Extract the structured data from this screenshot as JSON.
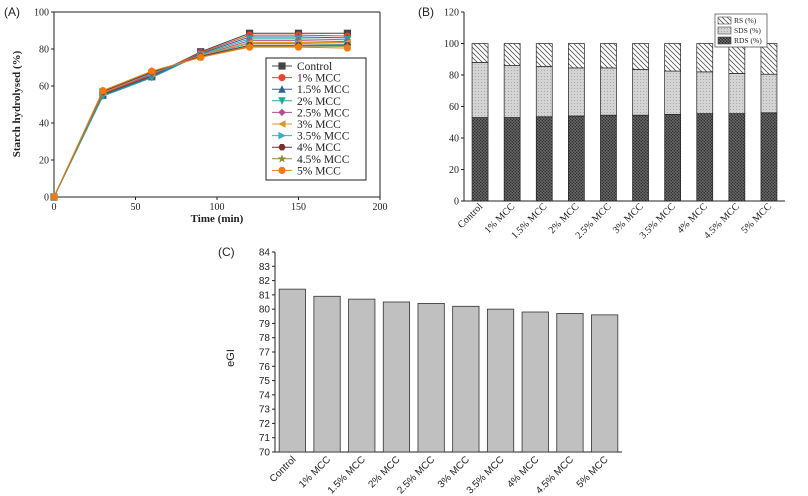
{
  "chart_data": [
    {
      "panel": "(A)",
      "type": "line",
      "xlabel": "Time (min)",
      "ylabel": "Starch hydrolysed (%)",
      "xlim": [
        0,
        200
      ],
      "ylim": [
        0,
        100
      ],
      "xticks": [
        "0",
        "50",
        "100",
        "150",
        "200"
      ],
      "yticks": [
        "0",
        "20",
        "40",
        "60",
        "80",
        "100"
      ],
      "x": [
        0,
        30,
        60,
        90,
        120,
        150,
        180
      ],
      "series": [
        {
          "name": "Control",
          "color": "#444444",
          "marker": "square",
          "values": [
            0,
            55.5,
            65.5,
            78.5,
            88.5,
            88.5,
            88.5
          ]
        },
        {
          "name": "1% MCC",
          "color": "#e8452a",
          "marker": "circle",
          "values": [
            0,
            56.0,
            66.0,
            78.0,
            87.5,
            87.5,
            87.0
          ]
        },
        {
          "name": "1.5% MCC",
          "color": "#2e5f9e",
          "marker": "triangle",
          "values": [
            0,
            55.0,
            65.0,
            77.5,
            86.5,
            86.5,
            86.0
          ]
        },
        {
          "name": "2% MCC",
          "color": "#26a69a",
          "marker": "tri-down",
          "values": [
            0,
            54.5,
            64.5,
            77.0,
            85.5,
            85.5,
            85.0
          ]
        },
        {
          "name": "2.5% MCC",
          "color": "#b0508a",
          "marker": "diamond",
          "values": [
            0,
            56.5,
            66.5,
            76.5,
            84.5,
            84.5,
            84.0
          ]
        },
        {
          "name": "3% MCC",
          "color": "#d99a2b",
          "marker": "tri-left",
          "values": [
            0,
            56.5,
            67.0,
            76.5,
            83.5,
            83.5,
            83.5
          ]
        },
        {
          "name": "3.5% MCC",
          "color": "#2bb5c5",
          "marker": "tri-right",
          "values": [
            0,
            57.0,
            67.0,
            76.0,
            83.0,
            83.0,
            82.5
          ]
        },
        {
          "name": "4% MCC",
          "color": "#7a2f2f",
          "marker": "hexagon",
          "values": [
            0,
            57.0,
            67.5,
            76.0,
            82.0,
            82.0,
            82.0
          ]
        },
        {
          "name": "4.5% MCC",
          "color": "#8a8a3a",
          "marker": "star",
          "values": [
            0,
            57.5,
            68.0,
            75.5,
            81.5,
            81.5,
            81.5
          ]
        },
        {
          "name": "5% MCC",
          "color": "#f07a10",
          "marker": "circle",
          "values": [
            0,
            57.5,
            68.0,
            75.5,
            81.0,
            81.0,
            80.5
          ]
        }
      ]
    },
    {
      "panel": "(B)",
      "type": "bar",
      "stacked": true,
      "ylim": [
        0,
        120
      ],
      "yticks": [
        "0",
        "20",
        "40",
        "60",
        "80",
        "100",
        "120"
      ],
      "categories": [
        "Control",
        "1% MCC",
        "1.5% MCC",
        "2% MCC",
        "2.5% MCC",
        "3% MCC",
        "3.5% MCC",
        "4% MCC",
        "4.5% MCC",
        "5% MCC"
      ],
      "legend": [
        "RS (%)",
        "SDS (%)",
        "RDS (%)"
      ],
      "series": [
        {
          "name": "RDS (%)",
          "values": [
            53,
            53,
            53.5,
            54,
            54.5,
            54.5,
            55,
            55.5,
            55.5,
            56
          ]
        },
        {
          "name": "SDS (%)",
          "values": [
            35,
            33,
            32,
            30.5,
            30,
            29,
            27.5,
            26.5,
            25.5,
            24.5
          ]
        },
        {
          "name": "RS (%)",
          "values": [
            12,
            14,
            14.5,
            15.5,
            15.5,
            16.5,
            17.5,
            18,
            19,
            19.5
          ]
        }
      ]
    },
    {
      "panel": "(C)",
      "type": "bar",
      "ylabel": "eGI",
      "ylim": [
        70,
        84
      ],
      "yticks": [
        "70",
        "71",
        "72",
        "73",
        "74",
        "75",
        "76",
        "77",
        "78",
        "79",
        "80",
        "81",
        "82",
        "83",
        "84"
      ],
      "categories": [
        "Control",
        "1% MCC",
        "1.5% MCC",
        "2% MCC",
        "2.5% MCC",
        "3% MCC",
        "3.5% MCC",
        "4% MCC",
        "4.5% MCC",
        "5% MCC"
      ],
      "values": [
        81.4,
        80.9,
        80.7,
        80.5,
        80.4,
        80.2,
        80.0,
        79.8,
        79.7,
        79.6
      ]
    }
  ]
}
